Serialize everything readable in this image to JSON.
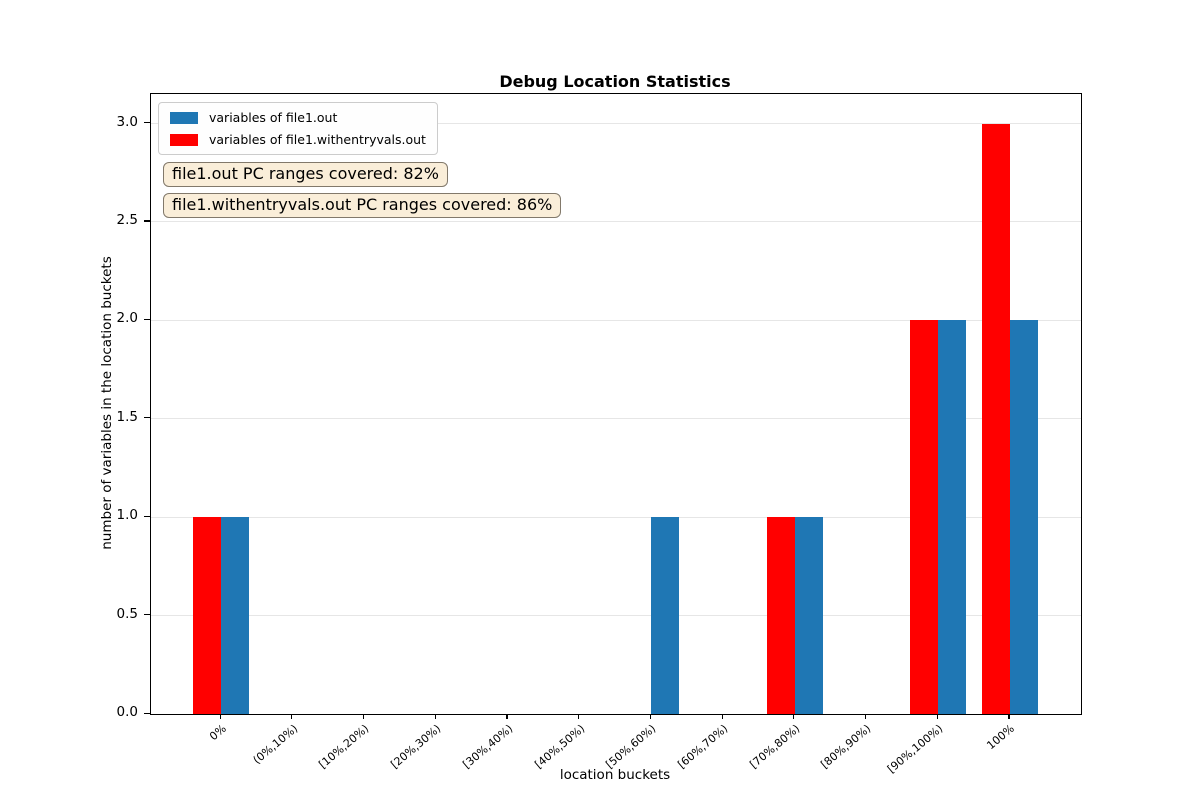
{
  "chart_data": {
    "type": "bar",
    "title": "Debug Location Statistics",
    "xlabel": "location buckets",
    "ylabel": "number of variables in the location buckets",
    "categories": [
      "0%",
      "(0%,10%)",
      "[10%,20%)",
      "[20%,30%)",
      "[30%,40%)",
      "[40%,50%)",
      "[50%,60%)",
      "[60%,70%)",
      "[70%,80%)",
      "[80%,90%)",
      "[90%,100%)",
      "100%"
    ],
    "series": [
      {
        "name": "variables of file1.out",
        "color": "#1f77b4",
        "side": "right",
        "values": [
          1,
          0,
          0,
          0,
          0,
          0,
          1,
          0,
          1,
          0,
          2,
          2
        ]
      },
      {
        "name": "variables of file1.withentryvals.out",
        "color": "#ff0000",
        "side": "left",
        "values": [
          1,
          0,
          0,
          0,
          0,
          0,
          0,
          0,
          1,
          0,
          2,
          3
        ]
      }
    ],
    "ylim": [
      0,
      3.15
    ],
    "yticks": [
      0.0,
      0.5,
      1.0,
      1.5,
      2.0,
      2.5,
      3.0
    ],
    "grid": true,
    "legend_position": "upper left",
    "annotations": [
      "file1.out PC ranges covered: 82%",
      "file1.withentryvals.out PC ranges covered: 86%"
    ],
    "colors": {
      "grid": "#e6e6e6",
      "annotation_bg": "#faeed9",
      "annotation_border": "#82796b"
    }
  }
}
